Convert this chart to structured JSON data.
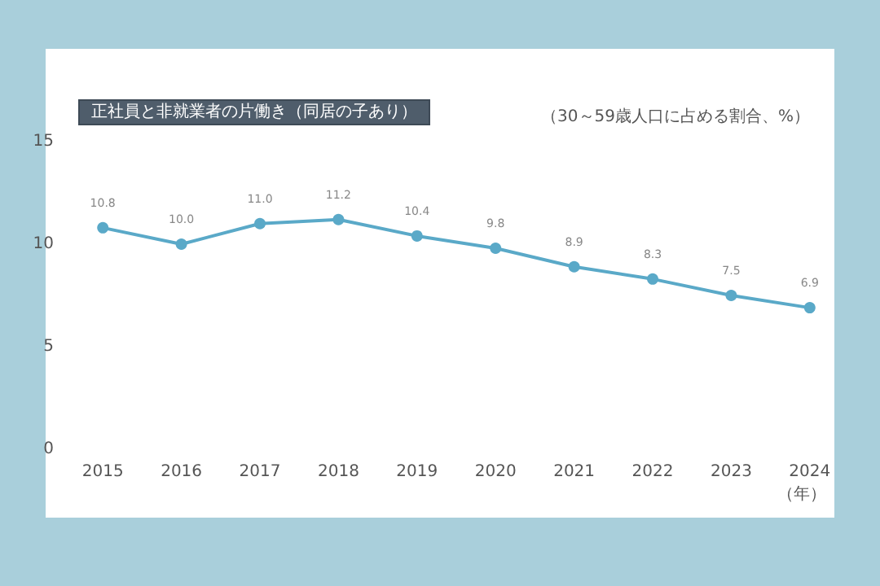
{
  "chart_data": {
    "type": "line",
    "title": "正社員と非就業者の片働き（同居の子あり）",
    "subtitle": "（30～59歳人口に占める割合、%）",
    "xlabel": "（年）",
    "categories": [
      "2015",
      "2016",
      "2017",
      "2018",
      "2019",
      "2020",
      "2021",
      "2022",
      "2023",
      "2024"
    ],
    "series": [
      {
        "color": "#5aa9c8",
        "values": [
          10.8,
          10.0,
          11.0,
          11.2,
          10.4,
          9.8,
          8.9,
          8.3,
          7.5,
          6.9
        ],
        "value_labels": [
          "10.8",
          "10.0",
          "11.0",
          "11.2",
          "10.4",
          "9.8",
          "8.9",
          "8.3",
          "7.5",
          "6.9"
        ]
      }
    ],
    "ylim": [
      0,
      15
    ],
    "yticks": [
      0,
      5,
      10,
      15
    ],
    "grid": false,
    "marker": "circle",
    "line_style": "solid"
  }
}
